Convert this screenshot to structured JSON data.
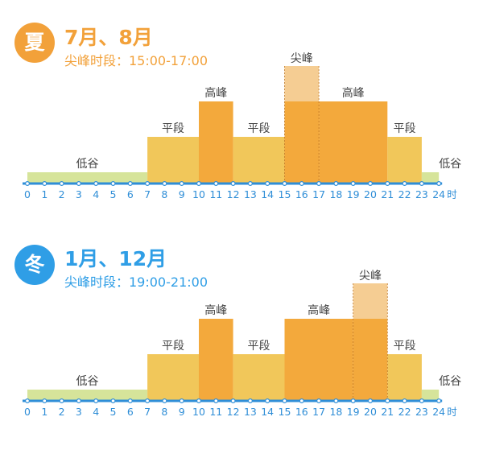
{
  "colors": {
    "valley": "#d6e49a",
    "flat": "#f1c75a",
    "high": "#f3a93c",
    "sharp_top": "#f5cd93",
    "axis": "#2f8ed7",
    "summer_accent": "#f2a13a",
    "winter_accent": "#2f9ee6",
    "label_text": "#444444"
  },
  "tier_labels": {
    "valley": "低谷",
    "flat": "平段",
    "high": "高峰",
    "sharp": "尖峰"
  },
  "hour_unit": "时",
  "chart_data": [
    {
      "type": "bar",
      "season_badge": "夏",
      "months": "7月、8月",
      "peak_period": "尖峰时段：15:00-17:00",
      "accent_color": "#f2a13a",
      "x_ticks": [
        0,
        1,
        2,
        3,
        4,
        5,
        6,
        7,
        8,
        9,
        10,
        11,
        12,
        13,
        14,
        15,
        16,
        17,
        18,
        19,
        20,
        21,
        22,
        23,
        24
      ],
      "x_unit": "时",
      "segments": [
        {
          "start": 0,
          "end": 7,
          "tier": "valley",
          "label": "低谷"
        },
        {
          "start": 7,
          "end": 10,
          "tier": "flat",
          "label": "平段"
        },
        {
          "start": 10,
          "end": 12,
          "tier": "high",
          "label": "高峰"
        },
        {
          "start": 12,
          "end": 15,
          "tier": "flat",
          "label": "平段"
        },
        {
          "start": 15,
          "end": 17,
          "tier": "sharp",
          "label": "尖峰"
        },
        {
          "start": 17,
          "end": 21,
          "tier": "high",
          "label": "高峰"
        },
        {
          "start": 21,
          "end": 23,
          "tier": "flat",
          "label": "平段"
        },
        {
          "start": 23,
          "end": 24,
          "tier": "valley",
          "label": "低谷"
        }
      ]
    },
    {
      "type": "bar",
      "season_badge": "冬",
      "months": "1月、12月",
      "peak_period": "尖峰时段：19:00-21:00",
      "accent_color": "#2f9ee6",
      "x_ticks": [
        0,
        1,
        2,
        3,
        4,
        5,
        6,
        7,
        8,
        9,
        10,
        11,
        12,
        13,
        14,
        15,
        16,
        17,
        18,
        19,
        20,
        21,
        22,
        23,
        24
      ],
      "x_unit": "时",
      "segments": [
        {
          "start": 0,
          "end": 7,
          "tier": "valley",
          "label": "低谷"
        },
        {
          "start": 7,
          "end": 10,
          "tier": "flat",
          "label": "平段"
        },
        {
          "start": 10,
          "end": 12,
          "tier": "high",
          "label": "高峰"
        },
        {
          "start": 12,
          "end": 15,
          "tier": "flat",
          "label": "平段"
        },
        {
          "start": 15,
          "end": 19,
          "tier": "high",
          "label": "高峰"
        },
        {
          "start": 19,
          "end": 21,
          "tier": "sharp",
          "label": "尖峰"
        },
        {
          "start": 21,
          "end": 23,
          "tier": "flat",
          "label": "平段"
        },
        {
          "start": 23,
          "end": 24,
          "tier": "valley",
          "label": "低谷"
        }
      ]
    }
  ]
}
